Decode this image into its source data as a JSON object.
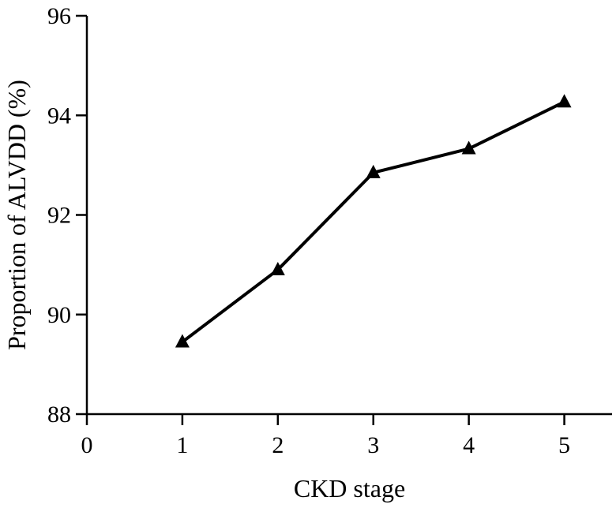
{
  "chart_data": {
    "type": "line",
    "title": "",
    "xlabel": "CKD stage",
    "ylabel": "Proportion of ALVDD (%)",
    "xlim": [
      0,
      5.5
    ],
    "ylim": [
      88,
      96
    ],
    "x_ticks": [
      "0",
      "1",
      "2",
      "3",
      "4",
      "5"
    ],
    "y_ticks": [
      "88",
      "90",
      "92",
      "94",
      "96"
    ],
    "grid": false,
    "marker": "triangle",
    "series": [
      {
        "name": "ALVDD",
        "x": [
          1,
          2,
          3,
          4,
          5
        ],
        "values": [
          89.45,
          90.9,
          92.85,
          93.33,
          94.27
        ]
      }
    ]
  }
}
